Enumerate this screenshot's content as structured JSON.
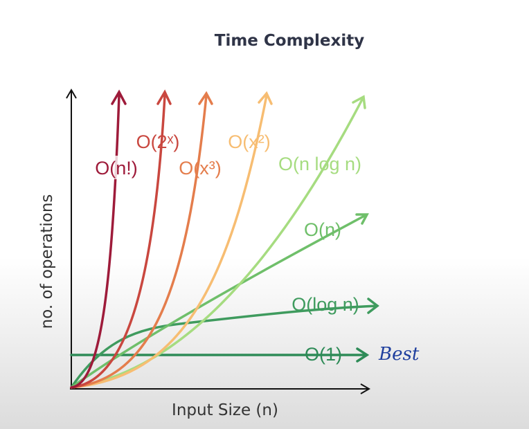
{
  "title": "Time Complexity",
  "axes": {
    "y_label": "no. of operations",
    "x_label": "Input Size (n)"
  },
  "curves": [
    {
      "label": "O(n!)"
    },
    {
      "label": "O(2ˣ)"
    },
    {
      "label": "O(x³)"
    },
    {
      "label": "O(x²)"
    },
    {
      "label": "O(n log n)"
    },
    {
      "label": "O(n)"
    },
    {
      "label": "O(log n)"
    },
    {
      "label": "O(1)"
    }
  ],
  "annotation": "Best"
}
